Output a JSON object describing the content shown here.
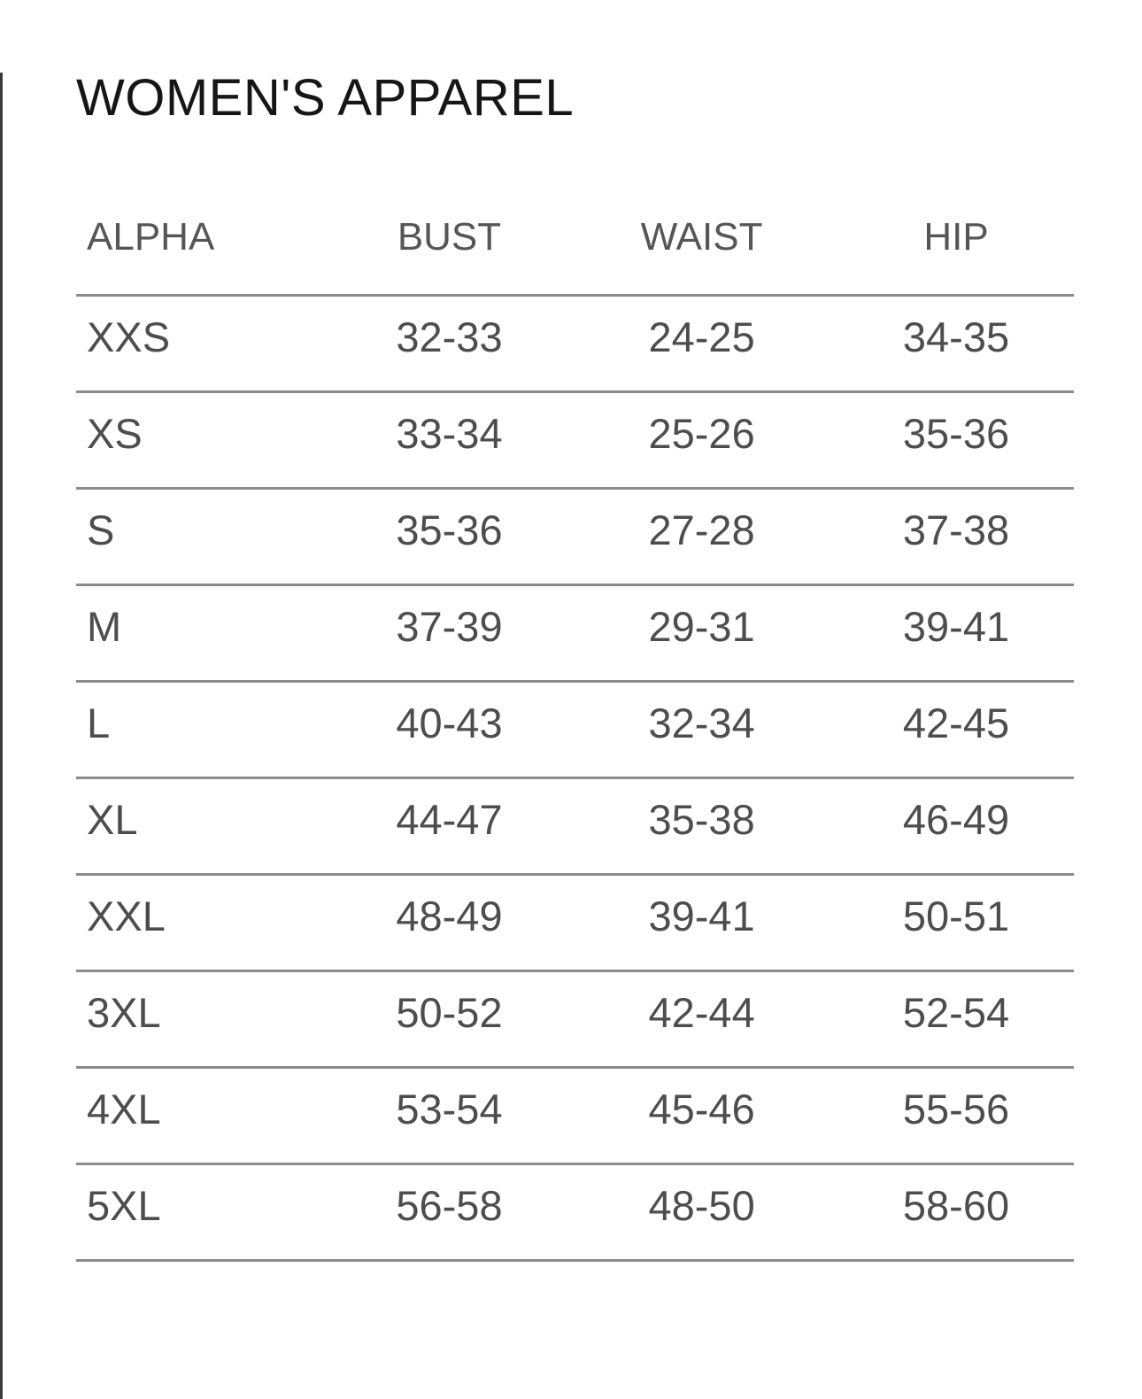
{
  "page": {
    "title": "WOMEN'S APPAREL"
  },
  "colors": {
    "title_text": "#161616",
    "header_text": "#56565a",
    "data_text": "#4d4d50",
    "rule_line": "#8b8b8b",
    "left_border": "#3a3a3c",
    "background": "#ffffff"
  },
  "table": {
    "headers": [
      "ALPHA",
      "BUST",
      "WAIST",
      "HIP"
    ],
    "rows": [
      [
        "XXS",
        "32-33",
        "24-25",
        "34-35"
      ],
      [
        "XS",
        "33-34",
        "25-26",
        "35-36"
      ],
      [
        "S",
        "35-36",
        "27-28",
        "37-38"
      ],
      [
        "M",
        "37-39",
        "29-31",
        "39-41"
      ],
      [
        "L",
        "40-43",
        "32-34",
        "42-45"
      ],
      [
        "XL",
        "44-47",
        "35-38",
        "46-49"
      ],
      [
        "XXL",
        "48-49",
        "39-41",
        "50-51"
      ],
      [
        "3XL",
        "50-52",
        "42-44",
        "52-54"
      ],
      [
        "4XL",
        "53-54",
        "45-46",
        "55-56"
      ],
      [
        "5XL",
        "56-58",
        "48-50",
        "58-60"
      ]
    ]
  }
}
